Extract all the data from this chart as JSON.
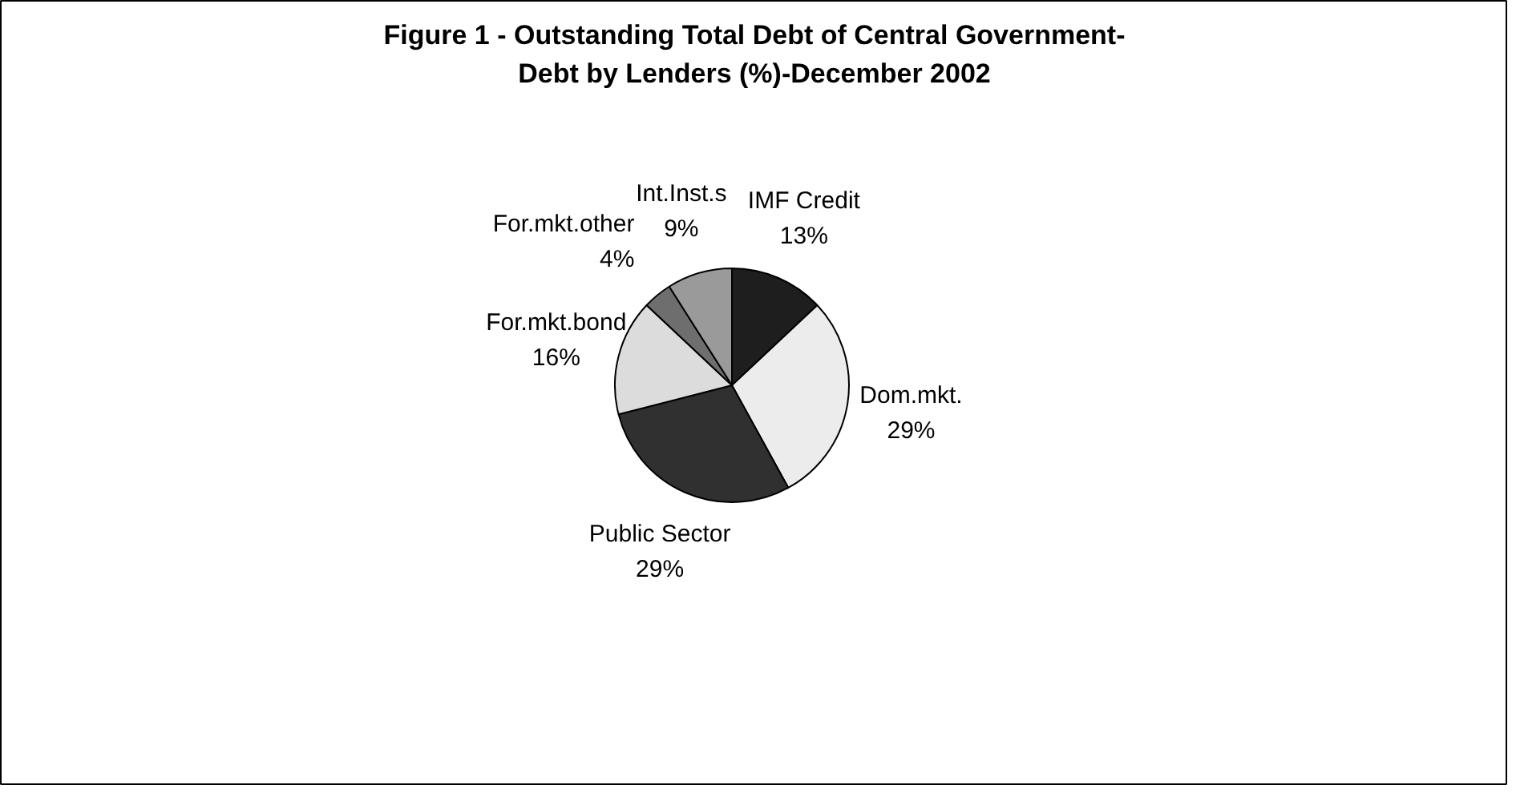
{
  "chart_data": {
    "type": "pie",
    "title": "Figure 1 - Outstanding Total Debt of Central Government-\nDebt by Lenders (%)-December 2002",
    "categories": [
      "IMF Credit",
      "Dom.mkt.",
      "Public Sector",
      "For.mkt.bond",
      "For.mkt.other",
      "Int.Inst.s"
    ],
    "values": [
      13,
      29,
      29,
      16,
      4,
      9
    ],
    "value_labels": [
      "13%",
      "29%",
      "29%",
      "16%",
      "4%",
      "9%"
    ],
    "colors": [
      "#1e1e1e",
      "#ececec",
      "#303030",
      "#dcdcdc",
      "#6e6e6e",
      "#9a9a9a"
    ]
  }
}
